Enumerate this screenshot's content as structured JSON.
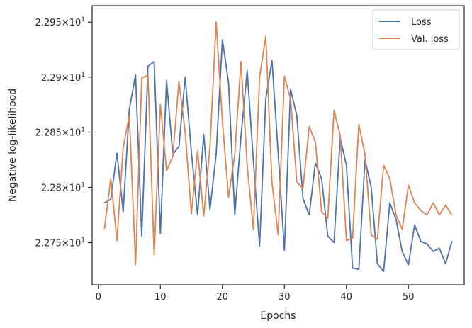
{
  "chart_data": {
    "type": "line",
    "xlabel": "Epochs",
    "ylabel": "Negative log-likelihood",
    "xlim": [
      -1,
      59
    ],
    "ylim": [
      22.712,
      22.965
    ],
    "y_scale": "log",
    "grid": false,
    "legend_position": "top-right",
    "x_ticks": [
      0,
      10,
      20,
      30,
      40,
      50
    ],
    "x_tick_labels": [
      "0",
      "10",
      "20",
      "30",
      "40",
      "50"
    ],
    "y_ticks": [
      22.75,
      22.8,
      22.85,
      22.9,
      22.95
    ],
    "y_tick_mantissas": [
      "2.275",
      "2.28",
      "2.285",
      "2.29",
      "2.295"
    ],
    "y_tick_base": "10",
    "y_tick_exponent": "1",
    "x": [
      1,
      2,
      3,
      4,
      5,
      6,
      7,
      8,
      9,
      10,
      11,
      12,
      13,
      14,
      15,
      16,
      17,
      18,
      19,
      20,
      21,
      22,
      23,
      24,
      25,
      26,
      27,
      28,
      29,
      30,
      31,
      32,
      33,
      34,
      35,
      36,
      37,
      38,
      39,
      40,
      41,
      42,
      43,
      44,
      45,
      46,
      47,
      48,
      49,
      50,
      51,
      52,
      53,
      54,
      55,
      56,
      57
    ],
    "series": [
      {
        "name": "Loss",
        "color": "#4c72b0",
        "values": [
          22.786,
          22.789,
          22.831,
          22.778,
          22.871,
          22.902,
          22.756,
          22.91,
          22.914,
          22.758,
          22.897,
          22.83,
          22.837,
          22.9,
          22.832,
          22.775,
          22.848,
          22.78,
          22.83,
          22.934,
          22.895,
          22.775,
          22.846,
          22.906,
          22.824,
          22.747,
          22.88,
          22.915,
          22.831,
          22.743,
          22.889,
          22.865,
          22.79,
          22.775,
          22.822,
          22.808,
          22.756,
          22.75,
          22.845,
          22.82,
          22.727,
          22.726,
          22.825,
          22.8,
          22.731,
          22.724,
          22.786,
          22.771,
          22.742,
          22.73,
          22.766,
          22.751,
          22.749,
          22.742,
          22.745,
          22.731,
          22.751
        ]
      },
      {
        "name": "Val. loss",
        "color": "#dd8452",
        "values": [
          22.763,
          22.808,
          22.752,
          22.836,
          22.865,
          22.73,
          22.899,
          22.902,
          22.739,
          22.875,
          22.815,
          22.828,
          22.896,
          22.85,
          22.776,
          22.833,
          22.774,
          22.837,
          22.95,
          22.86,
          22.791,
          22.83,
          22.914,
          22.82,
          22.762,
          22.9,
          22.937,
          22.804,
          22.757,
          22.901,
          22.88,
          22.805,
          22.799,
          22.855,
          22.841,
          22.778,
          22.772,
          22.87,
          22.847,
          22.752,
          22.754,
          22.857,
          22.83,
          22.757,
          22.753,
          22.82,
          22.808,
          22.775,
          22.762,
          22.802,
          22.786,
          22.779,
          22.775,
          22.786,
          22.775,
          22.784,
          22.775
        ]
      }
    ]
  }
}
